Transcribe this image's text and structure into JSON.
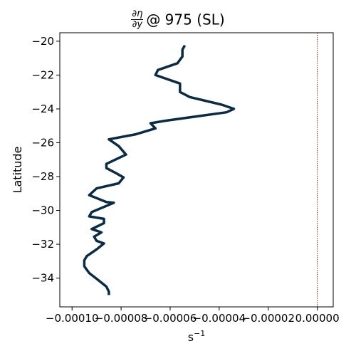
{
  "chart_data": {
    "type": "line",
    "title": {
      "frac_num": "∂η",
      "frac_den": "∂y",
      "text": "@ 975 (SL)"
    },
    "xlabel": "s",
    "xlabel_sup": "−1",
    "ylabel": "Latitude",
    "xlim": [
      -0.000105,
      6.5e-06
    ],
    "ylim": [
      -35.7,
      -19.5
    ],
    "xticks": [
      {
        "value": -0.0001,
        "label": "−0.00010"
      },
      {
        "value": -8e-05,
        "label": "−0.00008"
      },
      {
        "value": -6e-05,
        "label": "−0.00006"
      },
      {
        "value": -4e-05,
        "label": "−0.00004"
      },
      {
        "value": -2e-05,
        "label": "−0.00002"
      },
      {
        "value": 0,
        "label": "0.00000"
      }
    ],
    "yticks": [
      {
        "value": -20,
        "label": "−20"
      },
      {
        "value": -22,
        "label": "−22"
      },
      {
        "value": -24,
        "label": "−24"
      },
      {
        "value": -26,
        "label": "−26"
      },
      {
        "value": -28,
        "label": "−28"
      },
      {
        "value": -30,
        "label": "−30"
      },
      {
        "value": -32,
        "label": "−32"
      },
      {
        "value": -34,
        "label": "−34"
      }
    ],
    "reference_line": {
      "x": 0,
      "color": "#8b1a1a",
      "style": "dotted"
    },
    "series": [
      {
        "color": "#0b2a44",
        "points": [
          [
            -5.4e-05,
            -20.25
          ],
          [
            -5.5e-05,
            -20.5
          ],
          [
            -5.5e-05,
            -20.9
          ],
          [
            -5.7e-05,
            -21.3
          ],
          [
            -6.5e-05,
            -21.7
          ],
          [
            -6.6e-05,
            -22.0
          ],
          [
            -5.6e-05,
            -22.5
          ],
          [
            -5.6e-05,
            -23.0
          ],
          [
            -5.2e-05,
            -23.3
          ],
          [
            -3.9e-05,
            -23.75
          ],
          [
            -3.4e-05,
            -24.0
          ],
          [
            -3.7e-05,
            -24.2
          ],
          [
            -6.2e-05,
            -24.7
          ],
          [
            -6.8e-05,
            -24.85
          ],
          [
            -6.6e-05,
            -25.15
          ],
          [
            -7.4e-05,
            -25.5
          ],
          [
            -8.5e-05,
            -25.8
          ],
          [
            -8.1e-05,
            -26.2
          ],
          [
            -7.8e-05,
            -26.7
          ],
          [
            -8.6e-05,
            -27.25
          ],
          [
            -8.6e-05,
            -27.5
          ],
          [
            -8.2e-05,
            -27.8
          ],
          [
            -7.9e-05,
            -28.05
          ],
          [
            -8.1e-05,
            -28.4
          ],
          [
            -9e-05,
            -28.7
          ],
          [
            -9.3e-05,
            -29.1
          ],
          [
            -8.6e-05,
            -29.5
          ],
          [
            -8.3e-05,
            -29.55
          ],
          [
            -9.2e-05,
            -30.1
          ],
          [
            -9.3e-05,
            -30.35
          ],
          [
            -8.7e-05,
            -30.5
          ],
          [
            -8.7e-05,
            -30.75
          ],
          [
            -9.2e-05,
            -31.1
          ],
          [
            -8.8e-05,
            -31.3
          ],
          [
            -9.1e-05,
            -31.55
          ],
          [
            -9e-05,
            -31.8
          ],
          [
            -8.7e-05,
            -31.95
          ],
          [
            -9e-05,
            -32.3
          ],
          [
            -9.4e-05,
            -32.7
          ],
          [
            -9.5e-05,
            -32.95
          ],
          [
            -9.5e-05,
            -33.3
          ],
          [
            -9.3e-05,
            -33.7
          ],
          [
            -8.9e-05,
            -34.15
          ],
          [
            -8.6e-05,
            -34.5
          ],
          [
            -8.5e-05,
            -34.8
          ],
          [
            -8.5e-05,
            -35.0
          ]
        ]
      }
    ]
  }
}
